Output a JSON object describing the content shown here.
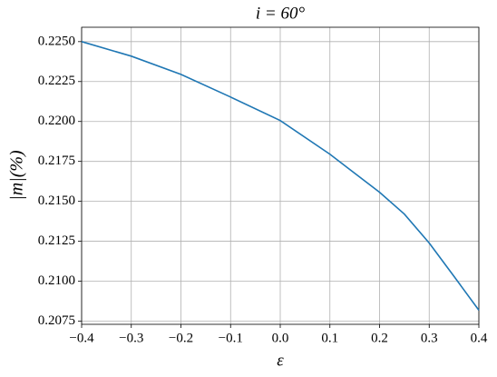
{
  "chart_data": {
    "type": "line",
    "title": "i = 60°",
    "x_label": "ε",
    "y_label": "|m|(%)",
    "x": [
      -0.4,
      -0.3,
      -0.2,
      -0.1,
      0.0,
      0.1,
      0.2,
      0.25,
      0.3,
      0.35,
      0.4
    ],
    "values": [
      0.225,
      0.22409,
      0.22295,
      0.22153,
      0.22006,
      0.21795,
      0.21557,
      0.2142,
      0.21239,
      0.2103,
      0.20818
    ],
    "color": "#1f77b4",
    "xlim": [
      -0.4,
      0.4
    ],
    "ylim": [
      0.2073,
      0.2259
    ],
    "xticks": [
      {
        "value": -0.4,
        "label": "−0.4"
      },
      {
        "value": -0.3,
        "label": "−0.3"
      },
      {
        "value": -0.2,
        "label": "−0.2"
      },
      {
        "value": -0.1,
        "label": "−0.1"
      },
      {
        "value": 0.0,
        "label": "0.0"
      },
      {
        "value": 0.1,
        "label": "0.1"
      },
      {
        "value": 0.2,
        "label": "0.2"
      },
      {
        "value": 0.3,
        "label": "0.3"
      },
      {
        "value": 0.4,
        "label": "0.4"
      }
    ],
    "yticks": [
      {
        "value": 0.2075,
        "label": "0.2075"
      },
      {
        "value": 0.21,
        "label": "0.2100"
      },
      {
        "value": 0.2125,
        "label": "0.2125"
      },
      {
        "value": 0.215,
        "label": "0.2150"
      },
      {
        "value": 0.2175,
        "label": "0.2175"
      },
      {
        "value": 0.22,
        "label": "0.2200"
      },
      {
        "value": 0.2225,
        "label": "0.2225"
      },
      {
        "value": 0.225,
        "label": "0.2250"
      }
    ],
    "grid": true
  }
}
